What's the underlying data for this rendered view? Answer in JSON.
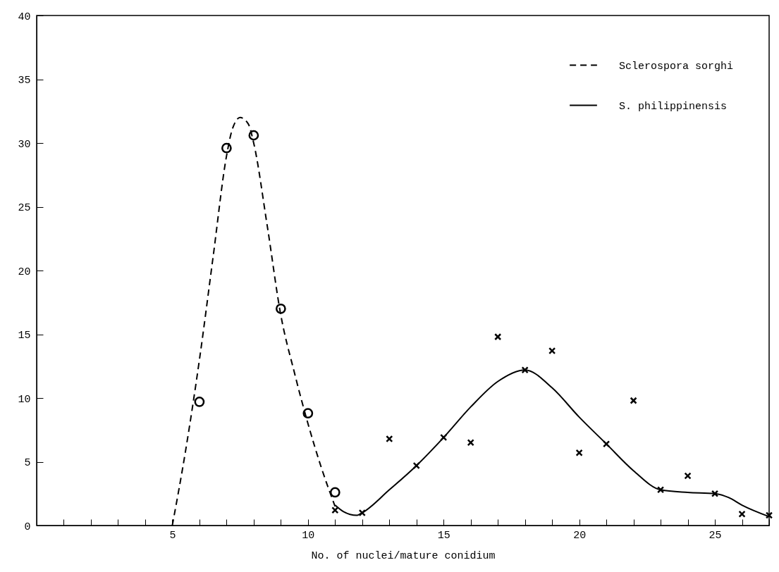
{
  "chart_data": {
    "type": "line",
    "xlabel": "No. of nuclei/mature conidium",
    "xlim": [
      0,
      27
    ],
    "ylim": [
      0,
      40
    ],
    "xticks": [
      {
        "value": 1,
        "label": null
      },
      {
        "value": 2,
        "label": null
      },
      {
        "value": 3,
        "label": null
      },
      {
        "value": 4,
        "label": null
      },
      5,
      {
        "value": 6,
        "label": null
      },
      {
        "value": 7,
        "label": null
      },
      {
        "value": 8,
        "label": null
      },
      {
        "value": 9,
        "label": null
      },
      10,
      {
        "value": 11,
        "label": null
      },
      {
        "value": 12,
        "label": null
      },
      {
        "value": 13,
        "label": null
      },
      {
        "value": 14,
        "label": null
      },
      15,
      {
        "value": 16,
        "label": null
      },
      {
        "value": 17,
        "label": null
      },
      {
        "value": 18,
        "label": null
      },
      {
        "value": 19,
        "label": null
      },
      20,
      {
        "value": 21,
        "label": null
      },
      {
        "value": 22,
        "label": null
      },
      {
        "value": 23,
        "label": null
      },
      {
        "value": 24,
        "label": null
      },
      25,
      {
        "value": 26,
        "label": null
      },
      {
        "value": 27,
        "label": null
      }
    ],
    "yticks": [
      0,
      5,
      10,
      15,
      20,
      25,
      30,
      35,
      40
    ],
    "grid": false,
    "legend": "top right",
    "series": [
      {
        "type": "scatter",
        "marker": "circle",
        "color": "#000000",
        "x": [
          6,
          7,
          8,
          9,
          10,
          11
        ],
        "values": [
          9.7,
          29.6,
          30.6,
          17,
          8.8,
          2.6
        ]
      },
      {
        "name": "Sclerospora sorghi",
        "line_style": "dashed",
        "color": "#000000",
        "x": [
          5,
          5.5,
          6,
          6.5,
          7,
          7.2,
          7.5,
          7.8,
          8,
          8.5,
          9,
          9.5,
          10,
          10.5,
          11
        ],
        "values": [
          0,
          6,
          13,
          21,
          29,
          31,
          32,
          31.5,
          30,
          23.5,
          16.5,
          12,
          8,
          4.5,
          1.5
        ]
      },
      {
        "type": "scatter",
        "marker": "cross",
        "color": "#000000",
        "x": [
          11,
          12,
          13,
          14,
          15,
          16,
          17,
          18,
          19,
          20,
          21,
          22,
          23,
          24,
          25,
          26,
          27
        ],
        "values": [
          1.2,
          1.0,
          6.8,
          4.7,
          6.9,
          6.5,
          14.8,
          12.2,
          13.7,
          5.7,
          6.4,
          9.8,
          2.8,
          3.9,
          2.5,
          0.9,
          0.8
        ]
      },
      {
        "name": "S. philippinensis",
        "line_style": "solid",
        "color": "#000000",
        "x": [
          11,
          11.3,
          11.8,
          12,
          13,
          14,
          15,
          16,
          17,
          18,
          19,
          20,
          21,
          22,
          23,
          24,
          25,
          25.5,
          26,
          27
        ],
        "values": [
          1.6,
          1.1,
          0.8,
          1.0,
          2.8,
          4.7,
          6.9,
          9.3,
          11.3,
          12.2,
          10.8,
          8.5,
          6.4,
          4.3,
          2.8,
          2.6,
          2.5,
          2.2,
          1.6,
          0.7
        ]
      }
    ]
  }
}
